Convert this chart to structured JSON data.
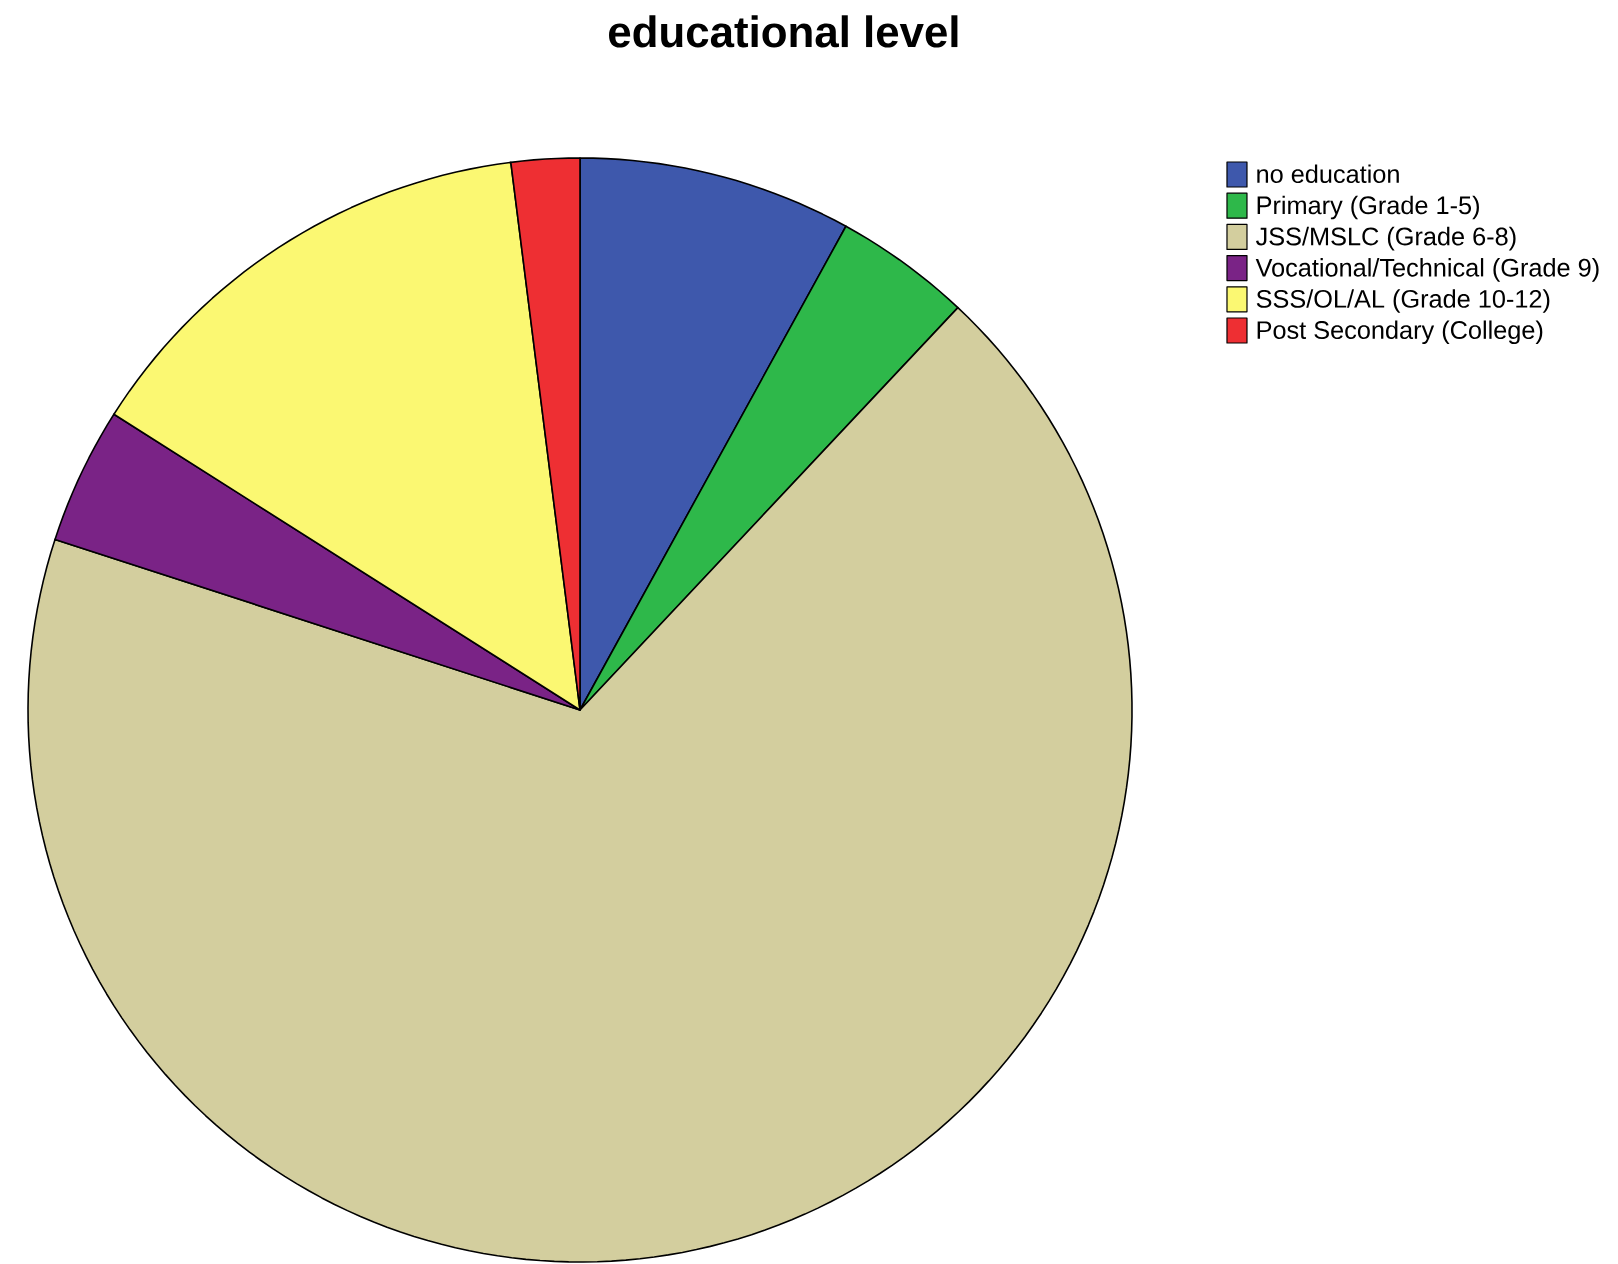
{
  "chart_data": {
    "type": "pie",
    "title": "educational level",
    "categories": [
      "no education",
      "Primary (Grade 1-5)",
      "JSS/MSLC (Grade 6-8)",
      "Vocational/Technical (Grade 9)",
      "SSS/OL/AL (Grade 10-12)",
      "Post Secondary (College)"
    ],
    "values": [
      8,
      4,
      68,
      4,
      14,
      2
    ],
    "colors": [
      "#3e58ac",
      "#2eb84a",
      "#d3ce9e",
      "#7a2386",
      "#fbf872",
      "#ee2f33"
    ],
    "legend": "top right"
  }
}
